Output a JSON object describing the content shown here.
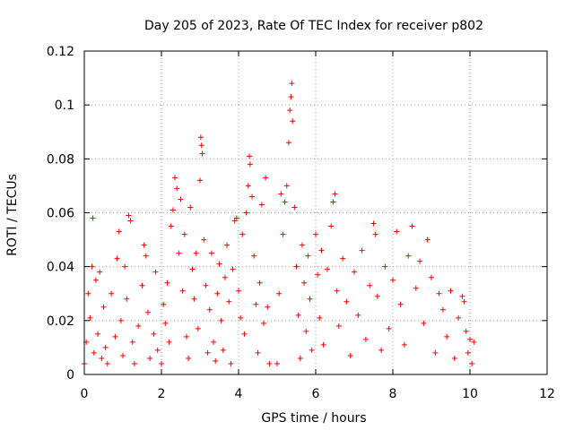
{
  "chart_data": {
    "type": "scatter",
    "title": "Day 205 of 2023, Rate Of TEC Index for receiver p802",
    "xlabel": "GPS time / hours",
    "ylabel": "ROTI / TECUs",
    "xlim": [
      0,
      12
    ],
    "ylim": [
      0,
      0.12
    ],
    "xticks": [
      0,
      2,
      4,
      6,
      8,
      10,
      12
    ],
    "xtick_labels": [
      "0",
      "2",
      "4",
      "6",
      "8",
      "10",
      "12"
    ],
    "yticks": [
      0,
      0.02,
      0.04,
      0.06,
      0.08,
      0.1,
      0.12
    ],
    "ytick_labels": [
      "0",
      "0.02",
      "0.04",
      "0.06",
      "0.08",
      "0.1",
      "0.12"
    ],
    "grid": true,
    "marker": "plus",
    "color": "#ff0000",
    "series": [
      {
        "points": [
          [
            0.0,
            0.004
          ],
          [
            0.05,
            0.012
          ],
          [
            0.1,
            0.03
          ],
          [
            0.15,
            0.021
          ],
          [
            0.2,
            0.04
          ],
          [
            0.22,
            0.058
          ],
          [
            0.25,
            0.008
          ],
          [
            0.3,
            0.035
          ],
          [
            0.35,
            0.015
          ],
          [
            0.4,
            0.038
          ],
          [
            0.45,
            0.006
          ],
          [
            0.5,
            0.025
          ],
          [
            0.55,
            0.01
          ],
          [
            0.6,
            0.004
          ],
          [
            0.7,
            0.03
          ],
          [
            0.8,
            0.014
          ],
          [
            0.85,
            0.043
          ],
          [
            0.9,
            0.053
          ],
          [
            0.95,
            0.02
          ],
          [
            1.0,
            0.007
          ],
          [
            1.05,
            0.04
          ],
          [
            1.1,
            0.028
          ],
          [
            1.15,
            0.059
          ],
          [
            1.2,
            0.057
          ],
          [
            1.25,
            0.012
          ],
          [
            1.3,
            0.004
          ],
          [
            1.4,
            0.018
          ],
          [
            1.5,
            0.033
          ],
          [
            1.55,
            0.048
          ],
          [
            1.6,
            0.044
          ],
          [
            1.65,
            0.023
          ],
          [
            1.7,
            0.006
          ],
          [
            1.8,
            0.015
          ],
          [
            1.85,
            0.038
          ],
          [
            1.9,
            0.009
          ],
          [
            2.0,
            0.004
          ],
          [
            2.05,
            0.026
          ],
          [
            2.1,
            0.019
          ],
          [
            2.15,
            0.034
          ],
          [
            2.2,
            0.012
          ],
          [
            2.25,
            0.055
          ],
          [
            2.3,
            0.061
          ],
          [
            2.35,
            0.073
          ],
          [
            2.4,
            0.069
          ],
          [
            2.45,
            0.045
          ],
          [
            2.5,
            0.065
          ],
          [
            2.55,
            0.031
          ],
          [
            2.6,
            0.052
          ],
          [
            2.65,
            0.014
          ],
          [
            2.7,
            0.006
          ],
          [
            2.75,
            0.062
          ],
          [
            2.8,
            0.039
          ],
          [
            2.85,
            0.028
          ],
          [
            2.9,
            0.045
          ],
          [
            2.95,
            0.017
          ],
          [
            3.0,
            0.072
          ],
          [
            3.02,
            0.088
          ],
          [
            3.04,
            0.085
          ],
          [
            3.06,
            0.082
          ],
          [
            3.1,
            0.05
          ],
          [
            3.15,
            0.033
          ],
          [
            3.2,
            0.008
          ],
          [
            3.25,
            0.024
          ],
          [
            3.3,
            0.045
          ],
          [
            3.35,
            0.012
          ],
          [
            3.4,
            0.005
          ],
          [
            3.45,
            0.03
          ],
          [
            3.5,
            0.041
          ],
          [
            3.55,
            0.02
          ],
          [
            3.6,
            0.009
          ],
          [
            3.65,
            0.036
          ],
          [
            3.7,
            0.048
          ],
          [
            3.75,
            0.027
          ],
          [
            3.8,
            0.004
          ],
          [
            3.85,
            0.039
          ],
          [
            3.9,
            0.057
          ],
          [
            3.95,
            0.058
          ],
          [
            4.0,
            0.031
          ],
          [
            4.05,
            0.021
          ],
          [
            4.1,
            0.052
          ],
          [
            4.15,
            0.015
          ],
          [
            4.2,
            0.06
          ],
          [
            4.25,
            0.07
          ],
          [
            4.28,
            0.081
          ],
          [
            4.3,
            0.078
          ],
          [
            4.35,
            0.066
          ],
          [
            4.4,
            0.044
          ],
          [
            4.45,
            0.026
          ],
          [
            4.5,
            0.008
          ],
          [
            4.55,
            0.034
          ],
          [
            4.6,
            0.063
          ],
          [
            4.65,
            0.019
          ],
          [
            4.7,
            0.073
          ],
          [
            4.75,
            0.025
          ],
          [
            4.8,
            0.004
          ],
          [
            5.0,
            0.004
          ],
          [
            5.05,
            0.03
          ],
          [
            5.1,
            0.067
          ],
          [
            5.15,
            0.052
          ],
          [
            5.2,
            0.064
          ],
          [
            5.25,
            0.07
          ],
          [
            5.3,
            0.086
          ],
          [
            5.33,
            0.098
          ],
          [
            5.36,
            0.103
          ],
          [
            5.38,
            0.108
          ],
          [
            5.4,
            0.094
          ],
          [
            5.45,
            0.062
          ],
          [
            5.5,
            0.04
          ],
          [
            5.55,
            0.022
          ],
          [
            5.6,
            0.006
          ],
          [
            5.65,
            0.048
          ],
          [
            5.7,
            0.034
          ],
          [
            5.75,
            0.016
          ],
          [
            5.8,
            0.044
          ],
          [
            5.85,
            0.028
          ],
          [
            5.9,
            0.009
          ],
          [
            6.0,
            0.052
          ],
          [
            6.05,
            0.037
          ],
          [
            6.1,
            0.021
          ],
          [
            6.15,
            0.046
          ],
          [
            6.2,
            0.011
          ],
          [
            6.3,
            0.039
          ],
          [
            6.4,
            0.055
          ],
          [
            6.45,
            0.064
          ],
          [
            6.5,
            0.067
          ],
          [
            6.55,
            0.031
          ],
          [
            6.6,
            0.018
          ],
          [
            6.7,
            0.043
          ],
          [
            6.8,
            0.027
          ],
          [
            6.9,
            0.007
          ],
          [
            7.0,
            0.038
          ],
          [
            7.1,
            0.022
          ],
          [
            7.2,
            0.046
          ],
          [
            7.3,
            0.013
          ],
          [
            7.4,
            0.033
          ],
          [
            7.5,
            0.056
          ],
          [
            7.55,
            0.052
          ],
          [
            7.6,
            0.029
          ],
          [
            7.7,
            0.009
          ],
          [
            7.8,
            0.04
          ],
          [
            7.9,
            0.017
          ],
          [
            8.0,
            0.035
          ],
          [
            8.1,
            0.053
          ],
          [
            8.2,
            0.026
          ],
          [
            8.3,
            0.011
          ],
          [
            8.4,
            0.044
          ],
          [
            8.5,
            0.055
          ],
          [
            8.6,
            0.032
          ],
          [
            8.7,
            0.042
          ],
          [
            8.8,
            0.019
          ],
          [
            8.9,
            0.05
          ],
          [
            9.0,
            0.036
          ],
          [
            9.1,
            0.008
          ],
          [
            9.2,
            0.03
          ],
          [
            9.3,
            0.024
          ],
          [
            9.4,
            0.014
          ],
          [
            9.5,
            0.031
          ],
          [
            9.6,
            0.006
          ],
          [
            9.7,
            0.021
          ],
          [
            9.8,
            0.029
          ],
          [
            9.85,
            0.027
          ],
          [
            9.9,
            0.016
          ],
          [
            9.95,
            0.008
          ],
          [
            10.0,
            0.013
          ],
          [
            10.05,
            0.004
          ],
          [
            10.1,
            0.012
          ]
        ]
      }
    ]
  }
}
